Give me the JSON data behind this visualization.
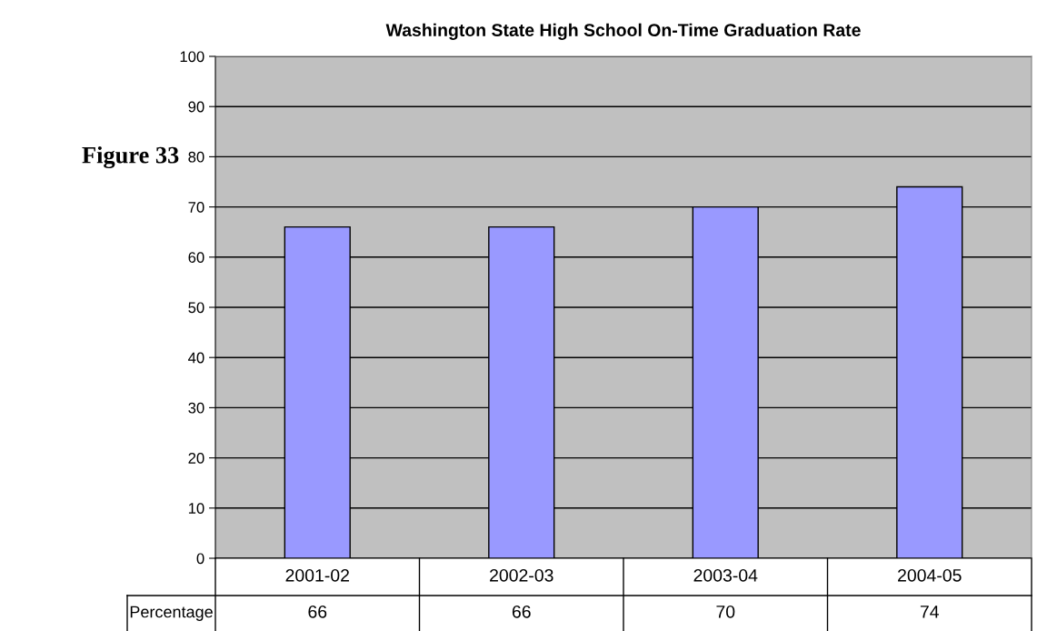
{
  "chart_data": {
    "type": "bar",
    "title": "Washington State High School On-Time Graduation Rate",
    "categories": [
      "2001-02",
      "2002-03",
      "2003-04",
      "2004-05"
    ],
    "series": [
      {
        "name": "Percentage",
        "color": "#9999ff",
        "values": [
          66,
          66,
          70,
          74
        ]
      }
    ],
    "ylim": [
      0,
      100
    ],
    "yticks": [
      0,
      10,
      20,
      30,
      40,
      50,
      60,
      70,
      80,
      90,
      100
    ],
    "grid": "y",
    "data_labels": true,
    "legend": "bottom left",
    "annotations": [
      "Figure 33"
    ]
  }
}
